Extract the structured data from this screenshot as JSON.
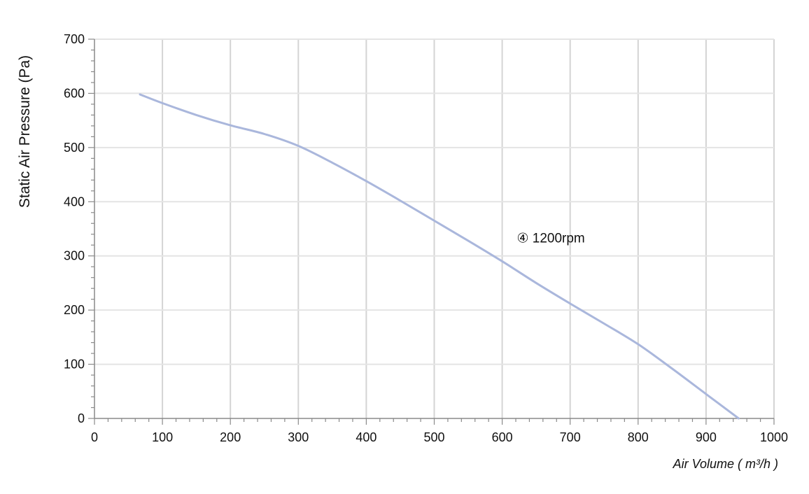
{
  "chart_data": {
    "type": "line",
    "title": "",
    "xlabel": "Air Volume ( m³/h )",
    "ylabel": "Static Air Pressure  (Pa)",
    "xlim": [
      0,
      1000
    ],
    "ylim": [
      0,
      700
    ],
    "x_ticks": [
      "0",
      "100",
      "200",
      "300",
      "400",
      "500",
      "600",
      "700",
      "800",
      "900",
      "1000"
    ],
    "y_ticks": [
      "0",
      "100",
      "200",
      "300",
      "400",
      "500",
      "600",
      "700"
    ],
    "grid": true,
    "series": [
      {
        "name": "④ 1200rpm",
        "color": "#aab7dc",
        "x": [
          67,
          100,
          150,
          200,
          250,
          300,
          350,
          400,
          450,
          500,
          550,
          600,
          650,
          700,
          750,
          800,
          850,
          900,
          948
        ],
        "y": [
          598,
          582,
          560,
          541,
          525,
          503,
          472,
          438,
          402,
          365,
          328,
          290,
          250,
          212,
          175,
          137,
          92,
          45,
          0
        ]
      }
    ],
    "annotations": [
      {
        "text": "④ 1200rpm",
        "x": 640,
        "y": 330
      }
    ]
  }
}
